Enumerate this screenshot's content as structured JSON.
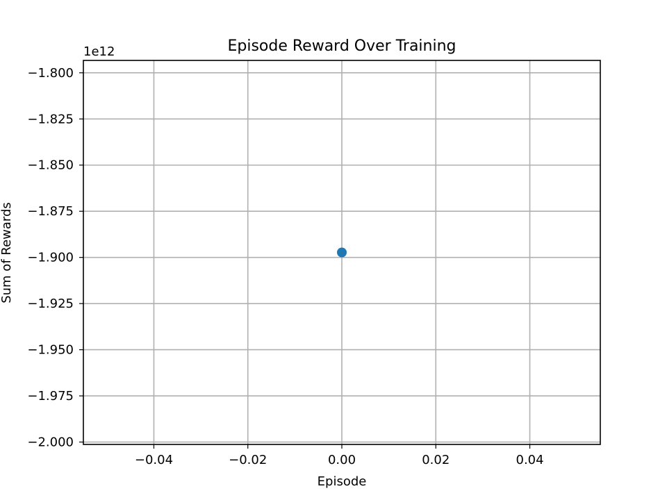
{
  "chart_data": {
    "type": "scatter",
    "title": "Episode Reward Over Training",
    "xlabel": "Episode",
    "ylabel": "Sum of Rewards",
    "y_offset_text": "1e12",
    "xlim": [
      -0.055,
      0.055
    ],
    "ylim": [
      -2.0013,
      -1.7933
    ],
    "x_ticks": [
      -0.04,
      -0.02,
      0.0,
      0.02,
      0.04
    ],
    "x_tick_labels": [
      "−0.04",
      "−0.02",
      "0.00",
      "0.02",
      "0.04"
    ],
    "y_ticks": [
      -1.8,
      -1.825,
      -1.85,
      -1.875,
      -1.9,
      -1.925,
      -1.95,
      -1.975,
      -2.0
    ],
    "y_tick_labels": [
      "−1.800",
      "−1.825",
      "−1.850",
      "−1.875",
      "−1.900",
      "−1.925",
      "−1.950",
      "−1.975",
      "−2.000"
    ],
    "grid": true,
    "series": [
      {
        "color": "#1f77b4",
        "points": [
          {
            "x": 0,
            "y": -1.8973
          }
        ]
      }
    ]
  }
}
